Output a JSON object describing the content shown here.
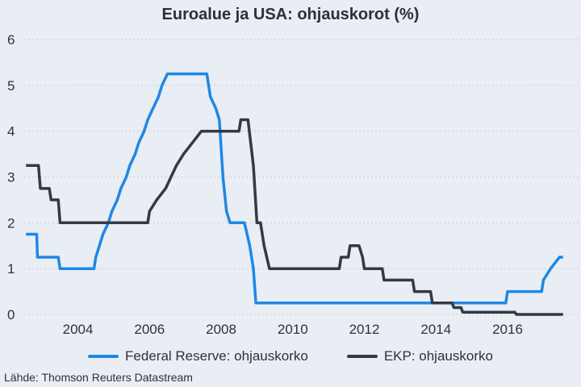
{
  "colors": {
    "fed": "#1e88e5",
    "ecb": "#343a42",
    "background": "#e9edf4"
  },
  "source": "Lähde: Thomson Reuters Datastream",
  "chart_data": {
    "type": "line",
    "title": "Euroalue ja USA: ohjauskorot (%)",
    "xlabel": "",
    "ylabel": "",
    "xlim": [
      2002.5,
      2017.6
    ],
    "ylim": [
      0,
      6
    ],
    "yticks": [
      0,
      1,
      2,
      3,
      4,
      5,
      6
    ],
    "xticks": [
      2004,
      2006,
      2008,
      2010,
      2012,
      2014,
      2016
    ],
    "grid": true,
    "legend_position": "bottom",
    "series": [
      {
        "name": "Federal Reserve: ohjauskorko",
        "color": "#1e88e5",
        "points": [
          [
            2002.55,
            1.75
          ],
          [
            2002.85,
            1.75
          ],
          [
            2002.87,
            1.25
          ],
          [
            2003.45,
            1.25
          ],
          [
            2003.5,
            1.0
          ],
          [
            2004.45,
            1.0
          ],
          [
            2004.5,
            1.25
          ],
          [
            2004.6,
            1.5
          ],
          [
            2004.7,
            1.75
          ],
          [
            2004.85,
            2.0
          ],
          [
            2004.95,
            2.25
          ],
          [
            2005.1,
            2.5
          ],
          [
            2005.2,
            2.75
          ],
          [
            2005.35,
            3.0
          ],
          [
            2005.45,
            3.25
          ],
          [
            2005.6,
            3.5
          ],
          [
            2005.7,
            3.75
          ],
          [
            2005.85,
            4.0
          ],
          [
            2005.95,
            4.25
          ],
          [
            2006.1,
            4.5
          ],
          [
            2006.25,
            4.75
          ],
          [
            2006.35,
            5.0
          ],
          [
            2006.5,
            5.25
          ],
          [
            2007.6,
            5.25
          ],
          [
            2007.7,
            4.75
          ],
          [
            2007.85,
            4.5
          ],
          [
            2007.95,
            4.25
          ],
          [
            2008.05,
            3.0
          ],
          [
            2008.15,
            2.25
          ],
          [
            2008.25,
            2.0
          ],
          [
            2008.65,
            2.0
          ],
          [
            2008.8,
            1.5
          ],
          [
            2008.9,
            1.0
          ],
          [
            2008.97,
            0.25
          ],
          [
            2015.95,
            0.25
          ],
          [
            2016.0,
            0.5
          ],
          [
            2016.95,
            0.5
          ],
          [
            2017.0,
            0.75
          ],
          [
            2017.2,
            1.0
          ],
          [
            2017.45,
            1.25
          ],
          [
            2017.55,
            1.25
          ]
        ]
      },
      {
        "name": "EKP: ohjauskorko",
        "color": "#343a42",
        "points": [
          [
            2002.55,
            3.25
          ],
          [
            2002.9,
            3.25
          ],
          [
            2002.95,
            2.75
          ],
          [
            2003.2,
            2.75
          ],
          [
            2003.25,
            2.5
          ],
          [
            2003.45,
            2.5
          ],
          [
            2003.5,
            2.0
          ],
          [
            2005.95,
            2.0
          ],
          [
            2006.0,
            2.25
          ],
          [
            2006.2,
            2.5
          ],
          [
            2006.45,
            2.75
          ],
          [
            2006.6,
            3.0
          ],
          [
            2006.75,
            3.25
          ],
          [
            2006.95,
            3.5
          ],
          [
            2007.2,
            3.75
          ],
          [
            2007.45,
            4.0
          ],
          [
            2008.5,
            4.0
          ],
          [
            2008.55,
            4.25
          ],
          [
            2008.75,
            4.25
          ],
          [
            2008.9,
            3.25
          ],
          [
            2009.0,
            2.0
          ],
          [
            2009.1,
            2.0
          ],
          [
            2009.2,
            1.5
          ],
          [
            2009.35,
            1.0
          ],
          [
            2011.3,
            1.0
          ],
          [
            2011.35,
            1.25
          ],
          [
            2011.55,
            1.25
          ],
          [
            2011.6,
            1.5
          ],
          [
            2011.85,
            1.5
          ],
          [
            2011.95,
            1.25
          ],
          [
            2012.0,
            1.0
          ],
          [
            2012.5,
            1.0
          ],
          [
            2012.55,
            0.75
          ],
          [
            2013.35,
            0.75
          ],
          [
            2013.4,
            0.5
          ],
          [
            2013.85,
            0.5
          ],
          [
            2013.9,
            0.25
          ],
          [
            2014.45,
            0.25
          ],
          [
            2014.5,
            0.15
          ],
          [
            2014.7,
            0.15
          ],
          [
            2014.75,
            0.05
          ],
          [
            2016.2,
            0.05
          ],
          [
            2016.25,
            0.0
          ],
          [
            2017.55,
            0.0
          ]
        ]
      }
    ]
  }
}
